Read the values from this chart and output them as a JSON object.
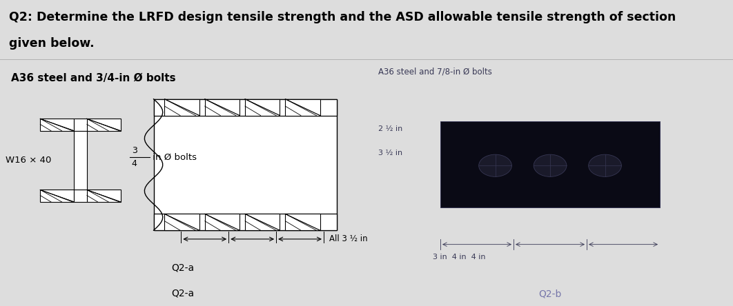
{
  "title_line1": "Q2: Determine the LRFD design tensile strength and the ASD allowable tensile strength of section",
  "title_line2": "given below.",
  "title_fontsize": 12.5,
  "title_fontweight": "bold",
  "left_panel_label": "A36 steel and 3/4-in Ø bolts",
  "left_label_w": "W16 × 40",
  "left_label_bolt_top": "3",
  "left_label_bolt_bot": "4",
  "left_label_bolt_rest": " in Ø bolts",
  "dimension_label": "All 3 ½ in",
  "bottom_label_left": "Q2-a",
  "bottom_label_right": "Q2-b",
  "right_panel_text1": "A36 steel and 7/8-in Ø bolts",
  "right_panel_dim1": "2 ½ in",
  "right_panel_dim2": "3 ½ in",
  "right_panel_dim3": "3 in  4 in  4 in",
  "bg_title": "#f2f2f2",
  "bg_left": "#ffffff",
  "bg_right": "#0d0d1a",
  "bg_fig": "#dddddd",
  "color_right_text": "#383855",
  "color_right_label": "#7777aa"
}
